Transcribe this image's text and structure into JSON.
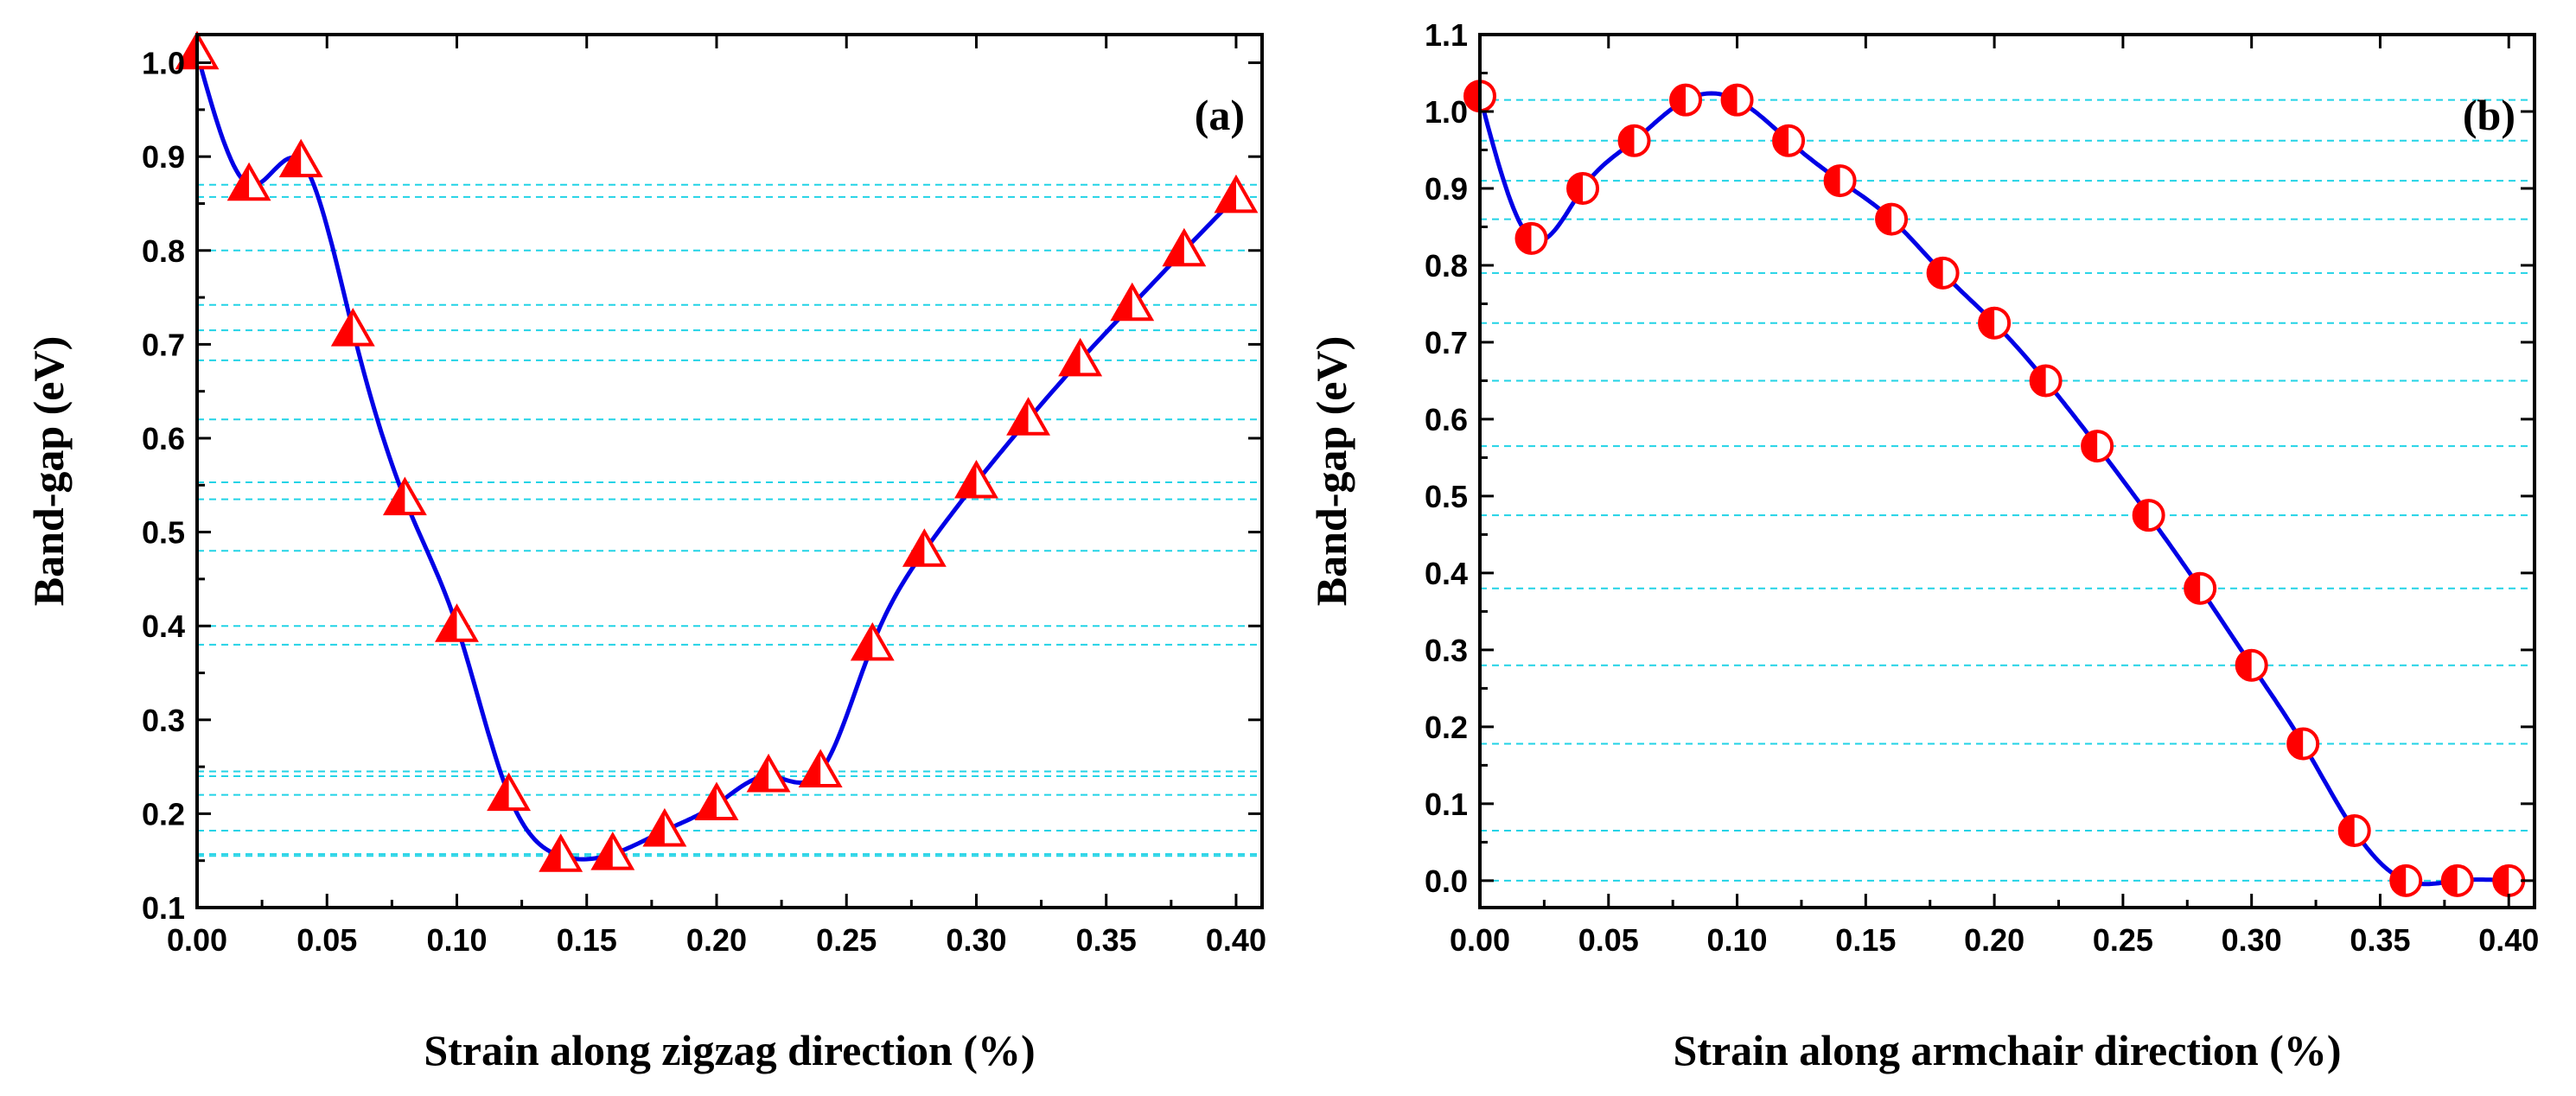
{
  "chart_data": [
    {
      "type": "line",
      "panel_label": "(a)",
      "xlabel": "Strain along zigzag direction (%)",
      "ylabel": "Band-gap (eV)",
      "xlim": [
        0,
        0.41
      ],
      "ylim": [
        0.1,
        1.03
      ],
      "xticks": [
        0.0,
        0.05,
        0.1,
        0.15,
        0.2,
        0.25,
        0.3,
        0.35,
        0.4
      ],
      "xtick_labels": [
        "0.00",
        "0.05",
        "0.10",
        "0.15",
        "0.20",
        "0.25",
        "0.30",
        "0.35",
        "0.40"
      ],
      "yticks": [
        0.1,
        0.2,
        0.3,
        0.4,
        0.5,
        0.6,
        0.7,
        0.8,
        0.9,
        1.0
      ],
      "ytick_labels": [
        "0.1",
        "0.2",
        "0.3",
        "0.4",
        "0.5",
        "0.6",
        "0.7",
        "0.8",
        "0.9",
        "1.0"
      ],
      "marker": "half-filled-triangle",
      "marker_color": "#ff0000",
      "line_color": "#0000e6",
      "guide_color": "#22d3e6",
      "x": [
        0.0,
        0.02,
        0.04,
        0.06,
        0.08,
        0.1,
        0.12,
        0.14,
        0.16,
        0.18,
        0.2,
        0.22,
        0.24,
        0.26,
        0.28,
        0.3,
        0.32,
        0.34,
        0.36,
        0.38,
        0.4
      ],
      "values": [
        1.01,
        0.87,
        0.895,
        0.715,
        0.535,
        0.4,
        0.22,
        0.155,
        0.157,
        0.182,
        0.21,
        0.24,
        0.245,
        0.38,
        0.48,
        0.553,
        0.62,
        0.683,
        0.742,
        0.8,
        0.857
      ],
      "guide_values": [
        0.87,
        0.857,
        0.8,
        0.742,
        0.715,
        0.683,
        0.62,
        0.553,
        0.535,
        0.48,
        0.4,
        0.38,
        0.245,
        0.24,
        0.22,
        0.182,
        0.157,
        0.155
      ]
    },
    {
      "type": "line",
      "panel_label": "(b)",
      "xlabel": "Strain along armchair direction (%)",
      "ylabel": "Band-gap (eV)",
      "xlim": [
        0,
        0.41
      ],
      "ylim": [
        -0.035,
        1.1
      ],
      "xticks": [
        0.0,
        0.05,
        0.1,
        0.15,
        0.2,
        0.25,
        0.3,
        0.35,
        0.4
      ],
      "xtick_labels": [
        "0.00",
        "0.05",
        "0.10",
        "0.15",
        "0.20",
        "0.25",
        "0.30",
        "0.35",
        "0.40"
      ],
      "yticks": [
        0.0,
        0.1,
        0.2,
        0.3,
        0.4,
        0.5,
        0.6,
        0.7,
        0.8,
        0.9,
        1.0,
        1.1
      ],
      "ytick_labels": [
        "0.0",
        "0.1",
        "0.2",
        "0.3",
        "0.4",
        "0.5",
        "0.6",
        "0.7",
        "0.8",
        "0.9",
        "1.0",
        "1.1"
      ],
      "marker": "half-filled-circle",
      "marker_color": "#ff0000",
      "line_color": "#0000e6",
      "guide_color": "#22d3e6",
      "x": [
        0.0,
        0.02,
        0.04,
        0.06,
        0.08,
        0.1,
        0.12,
        0.14,
        0.16,
        0.18,
        0.2,
        0.22,
        0.24,
        0.26,
        0.28,
        0.3,
        0.32,
        0.34,
        0.36,
        0.38,
        0.4
      ],
      "values": [
        1.02,
        0.835,
        0.9,
        0.962,
        1.015,
        1.015,
        0.962,
        0.91,
        0.86,
        0.79,
        0.725,
        0.65,
        0.565,
        0.475,
        0.38,
        0.28,
        0.178,
        0.065,
        0.0,
        0.0,
        0.0
      ],
      "guide_values": [
        1.015,
        0.962,
        0.91,
        0.86,
        0.79,
        0.725,
        0.65,
        0.565,
        0.475,
        0.38,
        0.28,
        0.178,
        0.065,
        0.0
      ]
    }
  ]
}
